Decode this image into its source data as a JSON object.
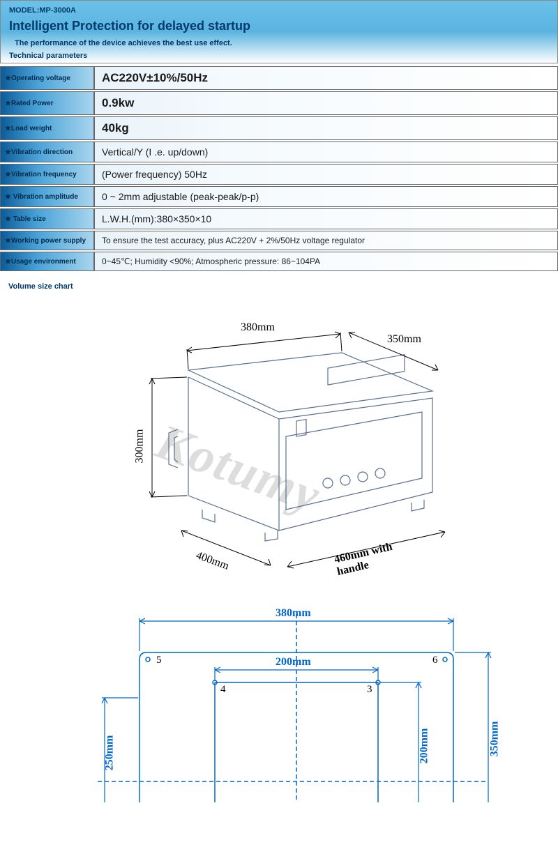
{
  "header": {
    "model": "MODEL:MP-3000A",
    "title": "Intelligent Protection for delayed startup",
    "subtitle": "The performance of the device achieves the best use effect.",
    "tech_params": "Technical parameters"
  },
  "specs": [
    {
      "label": "★Operating voltage",
      "value": "AC220V±10%/50Hz",
      "size": "large"
    },
    {
      "label": "★Rated Power",
      "value": "0.9kw",
      "size": "large"
    },
    {
      "label": "★Load weight",
      "value": "40kg",
      "size": "large"
    },
    {
      "label": "★Vibration direction",
      "value": "Vertical/Y (I .e. up/down)",
      "size": "med"
    },
    {
      "label": "★Vibration frequency",
      "value": "(Power frequency) 50Hz",
      "size": "med"
    },
    {
      "label": "★ Vibration amplitude",
      "value": "0 ~ 2mm adjustable (peak-peak/p-p)",
      "size": "med"
    },
    {
      "label": "★ Table size",
      "value": "L.W.H.(mm):380×350×10",
      "size": "med"
    },
    {
      "label": "★Working power supply",
      "value": "To ensure the test accuracy, plus AC220V + 2%/50Hz voltage regulator",
      "size": "sm"
    },
    {
      "label": "★Usage environment",
      "value": "0~45℃; Humidity <90%; Atmospheric pressure: 86~104PA",
      "size": "sm"
    }
  ],
  "chart_label": "Volume size chart",
  "watermark": "Kotumy",
  "iso_diagram": {
    "dim_top_width": "380mm",
    "dim_top_depth": "350mm",
    "dim_height": "300mm",
    "dim_front_depth": "400mm",
    "dim_with_handle": "460mm with handle",
    "stroke_color": "#5a7090",
    "dim_color": "#000000"
  },
  "top_diagram": {
    "outer_width": "380mm",
    "outer_height": "350mm",
    "inner_width": "200mm",
    "inner_height": "200mm",
    "left_dim": "250mm",
    "corner_labels": {
      "tl": "5",
      "tr": "6",
      "il": "4",
      "ir": "3"
    },
    "stroke_color": "#0066cc"
  },
  "colors": {
    "header_gradient_top": "#6bc1e8",
    "header_gradient_bottom": "#ffffff",
    "label_gradient_start": "#0b5c9a",
    "label_gradient_end": "#a8d5ee",
    "text_dark_blue": "#003a6b",
    "border": "#666666"
  }
}
